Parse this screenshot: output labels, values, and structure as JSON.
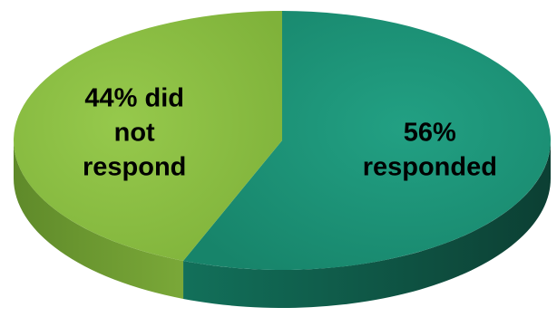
{
  "chart_data": {
    "type": "pie",
    "style": "3d",
    "title": "",
    "slices": [
      {
        "value": 56,
        "label_lines": [
          "56%",
          "responded"
        ],
        "color": "#1f9377",
        "side_color": "#145c49"
      },
      {
        "value": 44,
        "label_lines": [
          "44% did",
          "not",
          "respond"
        ],
        "color": "#8cbf43",
        "side_color": "#5c8a28"
      }
    ],
    "legend": "none"
  }
}
